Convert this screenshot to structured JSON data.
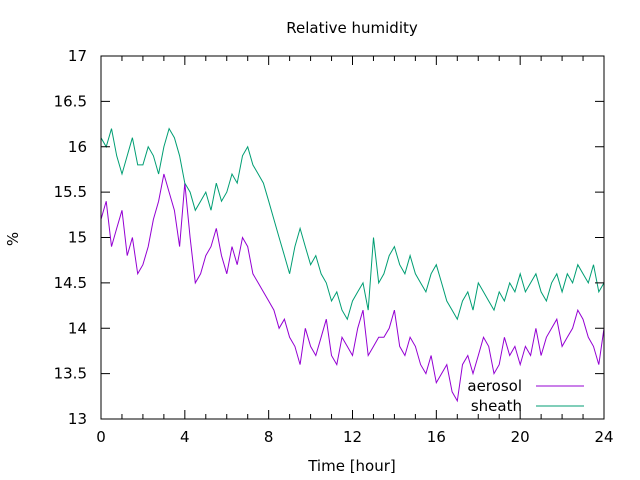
{
  "chart_data": {
    "type": "line",
    "title": "Relative humidity",
    "xlabel": "Time [hour]",
    "ylabel": "%",
    "xlim": [
      0,
      24
    ],
    "ylim": [
      13,
      17
    ],
    "xticks": [
      0,
      4,
      8,
      12,
      16,
      20,
      24
    ],
    "yticks": [
      13,
      13.5,
      14,
      14.5,
      15,
      15.5,
      16,
      16.5,
      17
    ],
    "xtick_labels": [
      "0",
      "4",
      "8",
      "12",
      "16",
      "20",
      "24"
    ],
    "ytick_labels": [
      "13",
      "13.5",
      "14",
      "14.5",
      "15",
      "15.5",
      "16",
      "16.5",
      "17"
    ],
    "grid": false,
    "legend_position": "bottom-right",
    "series": [
      {
        "name": "aerosol",
        "color": "#9400d3",
        "x": [
          0,
          0.25,
          0.5,
          0.75,
          1,
          1.25,
          1.5,
          1.75,
          2,
          2.25,
          2.5,
          2.75,
          3,
          3.25,
          3.5,
          3.75,
          4,
          4.25,
          4.5,
          4.75,
          5,
          5.25,
          5.5,
          5.75,
          6,
          6.25,
          6.5,
          6.75,
          7,
          7.25,
          7.5,
          7.75,
          8,
          8.25,
          8.5,
          8.75,
          9,
          9.25,
          9.5,
          9.75,
          10,
          10.25,
          10.5,
          10.75,
          11,
          11.25,
          11.5,
          11.75,
          12,
          12.25,
          12.5,
          12.75,
          13,
          13.25,
          13.5,
          13.75,
          14,
          14.25,
          14.5,
          14.75,
          15,
          15.25,
          15.5,
          15.75,
          16,
          16.25,
          16.5,
          16.75,
          17,
          17.25,
          17.5,
          17.75,
          18,
          18.25,
          18.5,
          18.75,
          19,
          19.25,
          19.5,
          19.75,
          20,
          20.25,
          20.5,
          20.75,
          21,
          21.25,
          21.5,
          21.75,
          22,
          22.25,
          22.5,
          22.75,
          23,
          23.25,
          23.5,
          23.75,
          24
        ],
        "y": [
          15.2,
          15.4,
          14.9,
          15.1,
          15.3,
          14.8,
          15.0,
          14.6,
          14.7,
          14.9,
          15.2,
          15.4,
          15.7,
          15.5,
          15.3,
          14.9,
          15.6,
          15.0,
          14.5,
          14.6,
          14.8,
          14.9,
          15.1,
          14.8,
          14.6,
          14.9,
          14.7,
          15.0,
          14.9,
          14.6,
          14.5,
          14.4,
          14.3,
          14.2,
          14.0,
          14.1,
          13.9,
          13.8,
          13.6,
          14.0,
          13.8,
          13.7,
          13.9,
          14.1,
          13.7,
          13.6,
          13.9,
          13.8,
          13.7,
          14.0,
          14.2,
          13.7,
          13.8,
          13.9,
          13.9,
          14.0,
          14.2,
          13.8,
          13.7,
          13.9,
          13.8,
          13.6,
          13.5,
          13.7,
          13.4,
          13.5,
          13.6,
          13.3,
          13.2,
          13.6,
          13.7,
          13.5,
          13.7,
          13.9,
          13.8,
          13.5,
          13.6,
          13.9,
          13.7,
          13.8,
          13.6,
          13.8,
          13.7,
          14.0,
          13.7,
          13.9,
          14.0,
          14.1,
          13.8,
          13.9,
          14.0,
          14.2,
          14.1,
          13.9,
          13.8,
          13.6,
          14.0
        ]
      },
      {
        "name": "sheath",
        "color": "#009e73",
        "x": [
          0,
          0.25,
          0.5,
          0.75,
          1,
          1.25,
          1.5,
          1.75,
          2,
          2.25,
          2.5,
          2.75,
          3,
          3.25,
          3.5,
          3.75,
          4,
          4.25,
          4.5,
          4.75,
          5,
          5.25,
          5.5,
          5.75,
          6,
          6.25,
          6.5,
          6.75,
          7,
          7.25,
          7.5,
          7.75,
          8,
          8.25,
          8.5,
          8.75,
          9,
          9.25,
          9.5,
          9.75,
          10,
          10.25,
          10.5,
          10.75,
          11,
          11.25,
          11.5,
          11.75,
          12,
          12.25,
          12.5,
          12.75,
          13,
          13.25,
          13.5,
          13.75,
          14,
          14.25,
          14.5,
          14.75,
          15,
          15.25,
          15.5,
          15.75,
          16,
          16.25,
          16.5,
          16.75,
          17,
          17.25,
          17.5,
          17.75,
          18,
          18.25,
          18.5,
          18.75,
          19,
          19.25,
          19.5,
          19.75,
          20,
          20.25,
          20.5,
          20.75,
          21,
          21.25,
          21.5,
          21.75,
          22,
          22.25,
          22.5,
          22.75,
          23,
          23.25,
          23.5,
          23.75,
          24
        ],
        "y": [
          16.1,
          16.0,
          16.2,
          15.9,
          15.7,
          15.9,
          16.1,
          15.8,
          15.8,
          16.0,
          15.9,
          15.7,
          16.0,
          16.2,
          16.1,
          15.9,
          15.6,
          15.5,
          15.3,
          15.4,
          15.5,
          15.3,
          15.6,
          15.4,
          15.5,
          15.7,
          15.6,
          15.9,
          16.0,
          15.8,
          15.7,
          15.6,
          15.4,
          15.2,
          15.0,
          14.8,
          14.6,
          14.9,
          15.1,
          14.9,
          14.7,
          14.8,
          14.6,
          14.5,
          14.3,
          14.4,
          14.2,
          14.1,
          14.3,
          14.4,
          14.5,
          14.2,
          15.0,
          14.5,
          14.6,
          14.8,
          14.9,
          14.7,
          14.6,
          14.8,
          14.6,
          14.5,
          14.4,
          14.6,
          14.7,
          14.5,
          14.3,
          14.2,
          14.1,
          14.3,
          14.4,
          14.2,
          14.5,
          14.4,
          14.3,
          14.2,
          14.4,
          14.3,
          14.5,
          14.4,
          14.6,
          14.4,
          14.5,
          14.6,
          14.4,
          14.3,
          14.5,
          14.6,
          14.4,
          14.6,
          14.5,
          14.7,
          14.6,
          14.5,
          14.7,
          14.4,
          14.5
        ]
      }
    ]
  }
}
